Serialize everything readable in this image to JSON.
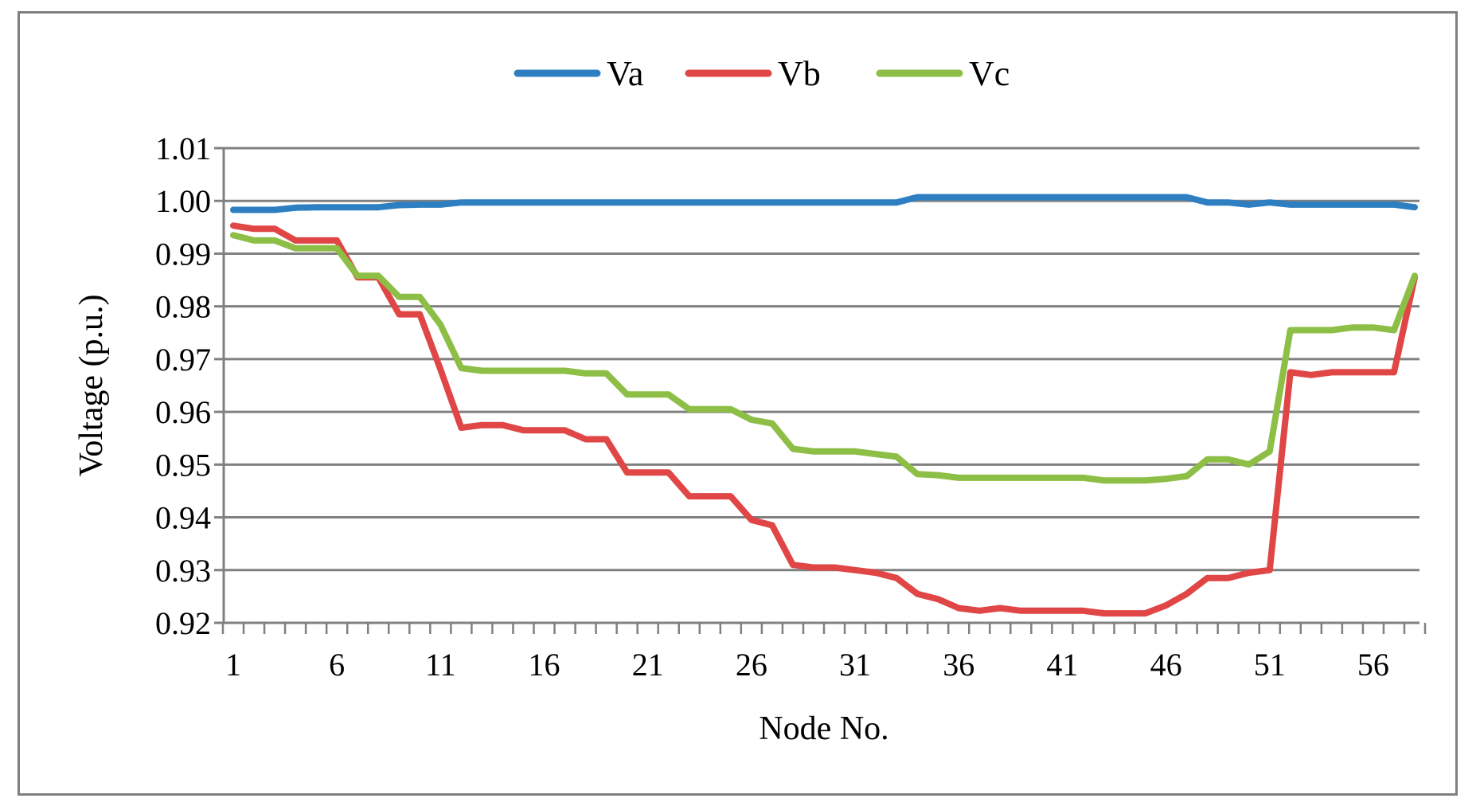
{
  "chart_data": {
    "type": "line",
    "title": "",
    "xlabel": "Node No.",
    "ylabel": "Voltage (p.u.)",
    "ylim": [
      0.92,
      1.01
    ],
    "yticks": [
      "0.92",
      "0.93",
      "0.94",
      "0.95",
      "0.96",
      "0.97",
      "0.98",
      "0.99",
      "1.00",
      "1.01"
    ],
    "xtick_labels": [
      "1",
      "6",
      "11",
      "16",
      "21",
      "26",
      "31",
      "36",
      "41",
      "46",
      "51",
      "56"
    ],
    "xtick_values": [
      1,
      6,
      11,
      16,
      21,
      26,
      31,
      36,
      41,
      46,
      51,
      56
    ],
    "x": [
      1,
      2,
      3,
      4,
      5,
      6,
      7,
      8,
      9,
      10,
      11,
      12,
      13,
      14,
      15,
      16,
      17,
      18,
      19,
      20,
      21,
      22,
      23,
      24,
      25,
      26,
      27,
      28,
      29,
      30,
      31,
      32,
      33,
      34,
      35,
      36,
      37,
      38,
      39,
      40,
      41,
      42,
      43,
      44,
      45,
      46,
      47,
      48,
      49,
      50,
      51,
      52,
      53,
      54,
      55,
      56,
      57,
      58
    ],
    "grid": true,
    "legend_position": "top-center",
    "series": [
      {
        "name": "Va",
        "color": "#2E7FC2",
        "values": [
          0.9983,
          0.9983,
          0.9983,
          0.9987,
          0.9988,
          0.9988,
          0.9988,
          0.9988,
          0.9992,
          0.9993,
          0.9993,
          0.9997,
          0.9997,
          0.9997,
          0.9997,
          0.9997,
          0.9997,
          0.9997,
          0.9997,
          0.9997,
          0.9997,
          0.9997,
          0.9997,
          0.9997,
          0.9997,
          0.9997,
          0.9997,
          0.9997,
          0.9997,
          0.9997,
          0.9997,
          0.9997,
          0.9997,
          1.0007,
          1.0007,
          1.0007,
          1.0007,
          1.0007,
          1.0007,
          1.0007,
          1.0007,
          1.0007,
          1.0007,
          1.0007,
          1.0007,
          1.0007,
          1.0007,
          0.9997,
          0.9997,
          0.9993,
          0.9997,
          0.9993,
          0.9993,
          0.9993,
          0.9993,
          0.9993,
          0.9993,
          0.9988
        ]
      },
      {
        "name": "Vb",
        "color": "#E04646",
        "values": [
          0.9953,
          0.9947,
          0.9947,
          0.9925,
          0.9925,
          0.9925,
          0.9855,
          0.9855,
          0.9785,
          0.9785,
          0.968,
          0.957,
          0.9575,
          0.9575,
          0.9565,
          0.9565,
          0.9565,
          0.9548,
          0.9548,
          0.9485,
          0.9485,
          0.9485,
          0.944,
          0.944,
          0.944,
          0.9395,
          0.9385,
          0.931,
          0.9305,
          0.9305,
          0.93,
          0.9295,
          0.9285,
          0.9255,
          0.9245,
          0.9228,
          0.9223,
          0.9228,
          0.9223,
          0.9223,
          0.9223,
          0.9223,
          0.9218,
          0.9218,
          0.9218,
          0.9233,
          0.9255,
          0.9285,
          0.9285,
          0.9295,
          0.93,
          0.9675,
          0.967,
          0.9675,
          0.9675,
          0.9675,
          0.9675,
          0.9855
        ]
      },
      {
        "name": "Vc",
        "color": "#8DBE45",
        "values": [
          0.9935,
          0.9925,
          0.9925,
          0.991,
          0.991,
          0.991,
          0.9858,
          0.9858,
          0.9818,
          0.9818,
          0.9765,
          0.9683,
          0.9678,
          0.9678,
          0.9678,
          0.9678,
          0.9678,
          0.9673,
          0.9673,
          0.9633,
          0.9633,
          0.9633,
          0.9605,
          0.9605,
          0.9605,
          0.9585,
          0.9578,
          0.953,
          0.9525,
          0.9525,
          0.9525,
          0.952,
          0.9515,
          0.9482,
          0.948,
          0.9475,
          0.9475,
          0.9475,
          0.9475,
          0.9475,
          0.9475,
          0.9475,
          0.947,
          0.947,
          0.947,
          0.9473,
          0.9478,
          0.951,
          0.951,
          0.95,
          0.9525,
          0.9755,
          0.9755,
          0.9755,
          0.976,
          0.976,
          0.9755,
          0.9858
        ]
      }
    ]
  }
}
